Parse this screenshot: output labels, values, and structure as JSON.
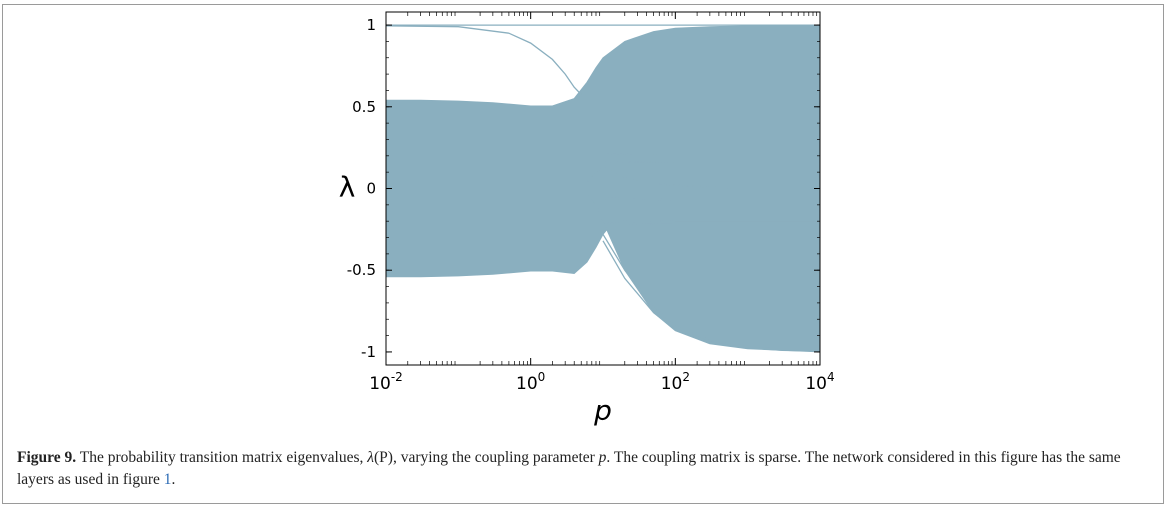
{
  "figure": {
    "caption": {
      "label": "Figure 9.",
      "part1": " The probability transition matrix eigenvalues, ",
      "math_symbol": "λ",
      "math_arg": "(P)",
      "part2": ", varying the coupling parameter ",
      "param": "p",
      "part3": ". The coupling matrix is sparse. The network considered in this figure has the same layers as used in figure ",
      "ref": "1",
      "part4": "."
    }
  },
  "chart_data": {
    "type": "line",
    "xlabel": "p",
    "ylabel": "λ",
    "xscale": "log",
    "xlim": [
      0.01,
      10000
    ],
    "ylim": [
      -1.08,
      1.08
    ],
    "xticks": [
      0.01,
      1,
      100,
      10000
    ],
    "xtick_labels": [
      {
        "base": "10",
        "exp": "-2"
      },
      {
        "base": "10",
        "exp": "0"
      },
      {
        "base": "10",
        "exp": "2"
      },
      {
        "base": "10",
        "exp": "4"
      }
    ],
    "yticks": [
      -1,
      -0.5,
      0,
      0.5,
      1
    ],
    "ytick_labels": [
      "-1",
      "-0.5",
      "0",
      "0.5",
      "1"
    ],
    "grid": false,
    "color": "#8aafbf",
    "bands": [
      {
        "name": "",
        "x": [
          0.01,
          0.03,
          0.1,
          0.3,
          1,
          2,
          4,
          6,
          8,
          10,
          20,
          50,
          100,
          300,
          1000,
          3000,
          10000
        ],
        "upper": [
          0.54,
          0.54,
          0.535,
          0.525,
          0.505,
          0.505,
          0.55,
          0.65,
          0.74,
          0.8,
          0.9,
          0.96,
          0.98,
          0.99,
          0.995,
          0.998,
          1.0
        ],
        "lower": [
          -0.54,
          -0.54,
          -0.535,
          -0.525,
          -0.505,
          -0.505,
          -0.52,
          -0.45,
          -0.36,
          -0.28,
          -0.12,
          -0.07,
          -0.06,
          -0.05,
          -0.05,
          -0.05,
          -0.05
        ]
      },
      {
        "name": "",
        "x": [
          6,
          8,
          10,
          20,
          50,
          100,
          300,
          1000,
          3000,
          10000
        ],
        "upper": [
          0.04,
          0.1,
          0.13,
          0.07,
          0.03,
          0.02,
          0.01,
          0.0,
          0.0,
          0.0
        ],
        "lower": [
          -0.04,
          -0.1,
          -0.2,
          -0.5,
          -0.76,
          -0.87,
          -0.95,
          -0.98,
          -0.99,
          -1.0
        ]
      }
    ],
    "series": [
      {
        "x": [
          0.01,
          10000
        ],
        "y": [
          1.0,
          1.0
        ]
      },
      {
        "x": [
          0.01,
          0.1,
          0.5,
          1,
          2,
          3,
          4,
          5
        ],
        "y": [
          0.995,
          0.99,
          0.95,
          0.89,
          0.79,
          0.7,
          0.62,
          0.575
        ]
      },
      {
        "x": [
          10,
          100,
          10000
        ],
        "y": [
          0.23,
          0.23,
          0.23
        ]
      },
      {
        "x": [
          10,
          100,
          10000
        ],
        "y": [
          0.21,
          0.215,
          0.215
        ]
      },
      {
        "x": [
          10,
          100,
          10000
        ],
        "y": [
          0.19,
          0.19,
          0.19
        ]
      },
      {
        "x": [
          10,
          100,
          10000
        ],
        "y": [
          0.16,
          0.165,
          0.165
        ]
      },
      {
        "x": [
          10,
          100,
          10000
        ],
        "y": [
          0.14,
          0.14,
          0.14
        ]
      },
      {
        "x": [
          10,
          100,
          10000
        ],
        "y": [
          0.12,
          0.12,
          0.12
        ]
      },
      {
        "x": [
          10,
          100,
          10000
        ],
        "y": [
          0.1,
          0.1,
          0.1
        ]
      },
      {
        "x": [
          10,
          100,
          10000
        ],
        "y": [
          0.08,
          0.08,
          0.08
        ]
      },
      {
        "x": [
          10,
          100,
          10000
        ],
        "y": [
          0.06,
          0.06,
          0.06
        ]
      },
      {
        "x": [
          10,
          100,
          10000
        ],
        "y": [
          -0.06,
          -0.07,
          -0.07
        ]
      },
      {
        "x": [
          10,
          100,
          10000
        ],
        "y": [
          -0.09,
          -0.09,
          -0.09
        ]
      },
      {
        "x": [
          10,
          100,
          10000
        ],
        "y": [
          -0.11,
          -0.11,
          -0.11
        ]
      },
      {
        "x": [
          10,
          100,
          10000
        ],
        "y": [
          -0.13,
          -0.13,
          -0.13
        ]
      },
      {
        "x": [
          10,
          100,
          10000
        ],
        "y": [
          -0.15,
          -0.15,
          -0.15
        ]
      },
      {
        "x": [
          10,
          100,
          10000
        ],
        "y": [
          -0.17,
          -0.17,
          -0.17
        ]
      },
      {
        "x": [
          10,
          100,
          10000
        ],
        "y": [
          -0.19,
          -0.2,
          -0.2
        ]
      },
      {
        "x": [
          10,
          100,
          10000
        ],
        "y": [
          -0.21,
          -0.22,
          -0.22
        ]
      },
      {
        "x": [
          10,
          100,
          10000
        ],
        "y": [
          -0.23,
          -0.23,
          -0.23
        ]
      },
      {
        "x": [
          10,
          20,
          50,
          100,
          300,
          1000,
          3000,
          10000
        ],
        "y": [
          -0.32,
          -0.55,
          -0.76,
          -0.86,
          -0.94,
          -0.975,
          -0.99,
          -0.995
        ]
      },
      {
        "x": [
          10,
          20,
          50,
          100,
          300,
          1000,
          3000,
          10000
        ],
        "y": [
          -0.28,
          -0.5,
          -0.72,
          -0.84,
          -0.93,
          -0.97,
          -0.985,
          -0.99
        ]
      }
    ]
  }
}
